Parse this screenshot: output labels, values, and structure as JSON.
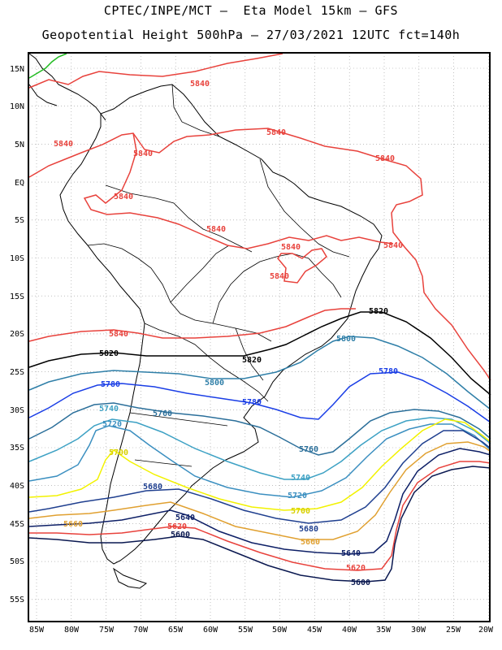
{
  "header": {
    "title_line1": "CPTEC/INPE/MCT –  Eta Model 15km – GFS",
    "title_line2": "Geopotential Height 500hPa – 27/03/2021 12UTC fct=140h"
  },
  "map": {
    "lat_labels": [
      "15N",
      "10N",
      "5N",
      "EQ",
      "5S",
      "10S",
      "15S",
      "20S",
      "25S",
      "30S",
      "35S",
      "40S",
      "45S",
      "50S",
      "55S"
    ],
    "lon_labels": [
      "85W",
      "80W",
      "75W",
      "70W",
      "65W",
      "60W",
      "55W",
      "50W",
      "45W",
      "40W",
      "35W",
      "30W",
      "25W",
      "20W"
    ],
    "grid": "dotted",
    "extent": {
      "lon": [
        -86,
        -20
      ],
      "lat": [
        -58,
        16
      ]
    }
  },
  "contours": [
    {
      "value": 5840,
      "color": "#e8423c",
      "label": "5840",
      "region": "tropical"
    },
    {
      "value": 5820,
      "color": "#000000",
      "label": "5820"
    },
    {
      "value": 5800,
      "color": "#2f7fa8",
      "label": "5800"
    },
    {
      "value": 5780,
      "color": "#1a3ee6",
      "label": "5780"
    },
    {
      "value": 5760,
      "color": "#2b6f9a",
      "label": "5760"
    },
    {
      "value": 5740,
      "color": "#3da1c4",
      "label": "5740"
    },
    {
      "value": 5720,
      "color": "#3b8fc0",
      "label": "5720"
    },
    {
      "value": 5700,
      "color": "#f2f200",
      "label": "5700"
    },
    {
      "value": 5680,
      "color": "#1f3f8f",
      "label": "5680"
    },
    {
      "value": 5660,
      "color": "#e0a030",
      "label": "5660"
    },
    {
      "value": 5640,
      "color": "#0d1f66",
      "label": "5640"
    },
    {
      "value": 5620,
      "color": "#e8423c",
      "label": "5620"
    },
    {
      "value": 5600,
      "color": "#0a1850",
      "label": "5600"
    }
  ],
  "colors": {
    "background": "#ffffff",
    "coast": "#000000",
    "grid": "#999999",
    "central_america_border": "#22bb22"
  }
}
